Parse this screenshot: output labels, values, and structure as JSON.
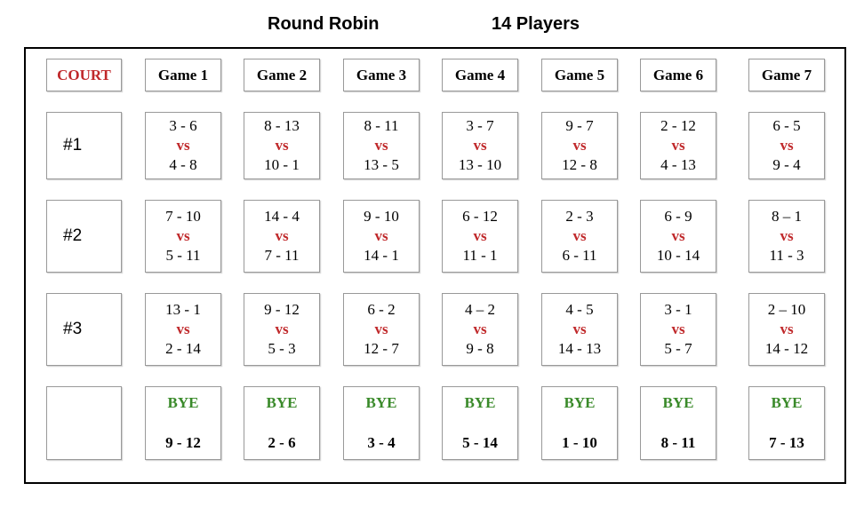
{
  "header": {
    "title": "Round Robin",
    "players": "14 Players"
  },
  "table": {
    "court_label": "COURT",
    "games": [
      "Game 1",
      "Game 2",
      "Game 3",
      "Game 4",
      "Game 5",
      "Game 6",
      "Game 7"
    ],
    "courts": [
      {
        "label": "#1",
        "matches": [
          {
            "team1": "3 - 6",
            "vs": "vs",
            "team2": "4 - 8"
          },
          {
            "team1": "8 - 13",
            "vs": "vs",
            "team2": "10 - 1"
          },
          {
            "team1": "8 - 11",
            "vs": "vs",
            "team2": "13 - 5"
          },
          {
            "team1": "3 - 7",
            "vs": "vs",
            "team2": "13 - 10"
          },
          {
            "team1": "9 - 7",
            "vs": "vs",
            "team2": "12 - 8"
          },
          {
            "team1": "2 - 12",
            "vs": "vs",
            "team2": "4 - 13"
          },
          {
            "team1": "6 - 5",
            "vs": "vs",
            "team2": "9 - 4"
          }
        ]
      },
      {
        "label": "#2",
        "matches": [
          {
            "team1": "7 - 10",
            "vs": "vs",
            "team2": "5 - 11"
          },
          {
            "team1": "14 - 4",
            "vs": "vs",
            "team2": "7 - 11"
          },
          {
            "team1": "9 - 10",
            "vs": "vs",
            "team2": "14 - 1"
          },
          {
            "team1": "6 - 12",
            "vs": "vs",
            "team2": "11 - 1"
          },
          {
            "team1": "2 - 3",
            "vs": "vs",
            "team2": "6 - 11"
          },
          {
            "team1": "6 - 9",
            "vs": "vs",
            "team2": "10 - 14"
          },
          {
            "team1": "8 – 1",
            "vs": "vs",
            "team2": "11 - 3"
          }
        ]
      },
      {
        "label": "#3",
        "matches": [
          {
            "team1": "13 - 1",
            "vs": "vs",
            "team2": "2 - 14"
          },
          {
            "team1": "9 - 12",
            "vs": "vs",
            "team2": "5 - 3"
          },
          {
            "team1": "6 - 2",
            "vs": "vs",
            "team2": "12 - 7"
          },
          {
            "team1": "4 – 2",
            "vs": "vs",
            "team2": "9 - 8"
          },
          {
            "team1": "4 - 5",
            "vs": "vs",
            "team2": "14 - 13"
          },
          {
            "team1": "3 - 1",
            "vs": "vs",
            "team2": "5 - 7"
          },
          {
            "team1": "2 – 10",
            "vs": "vs",
            "team2": "14 - 12"
          }
        ]
      }
    ],
    "byes": [
      {
        "label": "BYE",
        "players": "9 - 12"
      },
      {
        "label": "BYE",
        "players": "2 - 6"
      },
      {
        "label": "BYE",
        "players": "3 - 4"
      },
      {
        "label": "BYE",
        "players": "5 - 14"
      },
      {
        "label": "BYE",
        "players": "1 - 10"
      },
      {
        "label": "BYE",
        "players": "8 - 11"
      },
      {
        "label": "BYE",
        "players": "7 - 13"
      }
    ]
  }
}
